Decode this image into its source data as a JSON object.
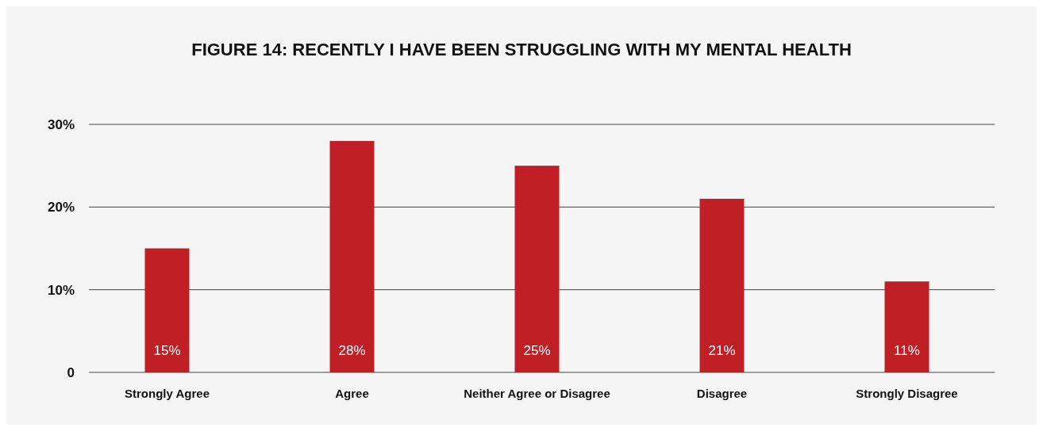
{
  "chart_data": {
    "type": "bar",
    "title": "FIGURE 14: RECENTLY I HAVE BEEN STRUGGLING WITH MY MENTAL HEALTH",
    "categories": [
      "Strongly Agree",
      "Agree",
      "Neither Agree or Disagree",
      "Disagree",
      "Strongly Disagree"
    ],
    "values": [
      15,
      28,
      25,
      21,
      11
    ],
    "value_labels": [
      "15%",
      "28%",
      "25%",
      "21%",
      "11%"
    ],
    "color": "#c01f26",
    "ylim": [
      0,
      30
    ],
    "yticks": [
      0,
      {
        "value": 10,
        "label": "10%"
      },
      {
        "value": 20,
        "label": "20%"
      },
      {
        "value": 30,
        "label": "30%"
      }
    ],
    "grid": "y"
  }
}
